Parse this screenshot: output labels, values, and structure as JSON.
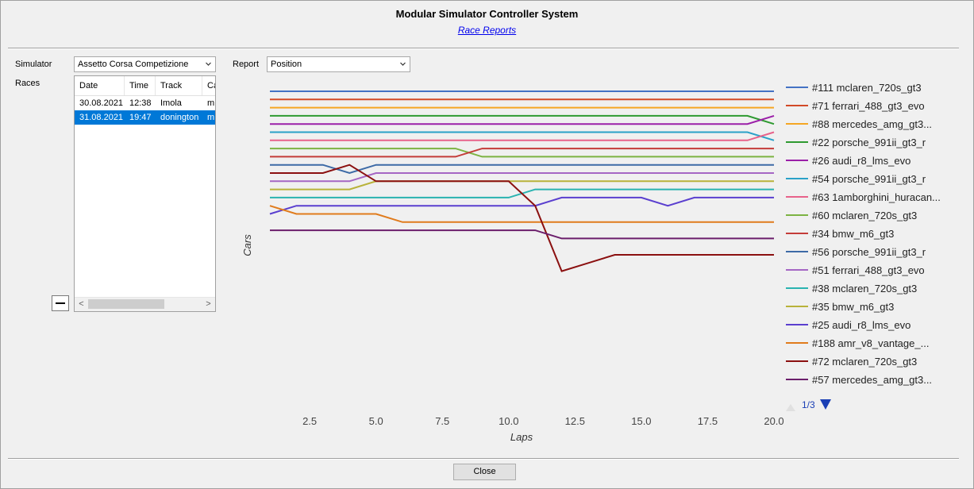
{
  "window": {
    "title": "Modular Simulator Controller System",
    "subtitle_link": "Race Reports"
  },
  "simulator": {
    "label": "Simulator",
    "value": "Assetto Corsa Competizione"
  },
  "report": {
    "label": "Report",
    "value": "Position"
  },
  "races": {
    "label": "Races",
    "columns": [
      "Date",
      "Time",
      "Track",
      "Ca"
    ],
    "rows": [
      {
        "date": "30.08.2021",
        "time": "12:38",
        "track": "Imola",
        "car": "m",
        "selected": false
      },
      {
        "date": "31.08.2021",
        "time": "19:47",
        "track": "donington",
        "car": "m",
        "selected": true
      }
    ]
  },
  "close_label": "Close",
  "chart_data": {
    "type": "line",
    "xlabel": "Laps",
    "ylabel": "Cars",
    "xlim": [
      1,
      20
    ],
    "xticks": [
      "2.5",
      "5.0",
      "7.5",
      "10.0",
      "12.5",
      "15.0",
      "17.5",
      "20.0"
    ],
    "page_indicator": "1/3",
    "series": [
      {
        "name": "#111 mclaren_720s_gt3",
        "color": "#4472c4",
        "positions": [
          1,
          1,
          1,
          1,
          1,
          1,
          1,
          1,
          1,
          1,
          1,
          1,
          1,
          1,
          1,
          1,
          1,
          1,
          1,
          1
        ]
      },
      {
        "name": "#71 ferrari_488_gt3_evo",
        "color": "#d24a27",
        "positions": [
          2,
          2,
          2,
          2,
          2,
          2,
          2,
          2,
          2,
          2,
          2,
          2,
          2,
          2,
          2,
          2,
          2,
          2,
          2,
          2
        ]
      },
      {
        "name": "#88 mercedes_amg_gt3...",
        "color": "#f5a623",
        "positions": [
          3,
          3,
          3,
          3,
          3,
          3,
          3,
          3,
          3,
          3,
          3,
          3,
          3,
          3,
          3,
          3,
          3,
          3,
          3,
          3
        ]
      },
      {
        "name": "#22 porsche_991ii_gt3_r",
        "color": "#2e9a30",
        "positions": [
          4,
          4,
          4,
          4,
          4,
          4,
          4,
          4,
          4,
          4,
          4,
          4,
          4,
          4,
          4,
          4,
          4,
          4,
          4,
          5
        ]
      },
      {
        "name": "#26 audi_r8_lms_evo",
        "color": "#9b1fa8",
        "positions": [
          5,
          5,
          5,
          5,
          5,
          5,
          5,
          5,
          5,
          5,
          5,
          5,
          5,
          5,
          5,
          5,
          5,
          5,
          5,
          4
        ]
      },
      {
        "name": "#54 porsche_991ii_gt3_r",
        "color": "#2aa1c8",
        "positions": [
          6,
          6,
          6,
          6,
          6,
          6,
          6,
          6,
          6,
          6,
          6,
          6,
          6,
          6,
          6,
          6,
          6,
          6,
          6,
          7
        ]
      },
      {
        "name": "#63 1amborghini_huracan...",
        "color": "#e8628a",
        "positions": [
          7,
          7,
          7,
          7,
          7,
          7,
          7,
          7,
          7,
          7,
          7,
          7,
          7,
          7,
          7,
          7,
          7,
          7,
          7,
          6
        ]
      },
      {
        "name": "#60 mclaren_720s_gt3",
        "color": "#7cb342",
        "positions": [
          8,
          8,
          8,
          8,
          8,
          8,
          8,
          8,
          9,
          9,
          9,
          9,
          9,
          9,
          9,
          9,
          9,
          9,
          9,
          9
        ]
      },
      {
        "name": "#34 bmw_m6_gt3",
        "color": "#c43c39",
        "positions": [
          9,
          9,
          9,
          9,
          9,
          9,
          9,
          9,
          8,
          8,
          8,
          8,
          8,
          8,
          8,
          8,
          8,
          8,
          8,
          8
        ]
      },
      {
        "name": "#56 porsche_991ii_gt3_r",
        "color": "#3d6aa6",
        "positions": [
          10,
          10,
          10,
          11,
          10,
          10,
          10,
          10,
          10,
          10,
          10,
          10,
          10,
          10,
          10,
          10,
          10,
          10,
          10,
          10
        ]
      },
      {
        "name": "#51 ferrari_488_gt3_evo",
        "color": "#a566c4",
        "positions": [
          12,
          12,
          12,
          12,
          11,
          11,
          11,
          11,
          11,
          11,
          11,
          11,
          11,
          11,
          11,
          11,
          11,
          11,
          11,
          11
        ]
      },
      {
        "name": "#38 mclaren_720s_gt3",
        "color": "#2ab3b0",
        "positions": [
          14,
          14,
          14,
          14,
          14,
          14,
          14,
          14,
          14,
          14,
          13,
          13,
          13,
          13,
          13,
          13,
          13,
          13,
          13,
          13
        ]
      },
      {
        "name": "#35 bmw_m6_gt3",
        "color": "#b8b23a",
        "positions": [
          13,
          13,
          13,
          13,
          12,
          12,
          12,
          12,
          12,
          12,
          12,
          12,
          12,
          12,
          12,
          12,
          12,
          12,
          12,
          12
        ]
      },
      {
        "name": "#25 audi_r8_lms_evo",
        "color": "#5a3fcf",
        "positions": [
          16,
          15,
          15,
          15,
          15,
          15,
          15,
          15,
          15,
          15,
          15,
          14,
          14,
          14,
          14,
          15,
          14,
          14,
          14,
          14
        ]
      },
      {
        "name": "#188 amr_v8_vantage_...",
        "color": "#e07b1c",
        "positions": [
          15,
          16,
          16,
          16,
          16,
          17,
          17,
          17,
          17,
          17,
          17,
          17,
          17,
          17,
          17,
          17,
          17,
          17,
          17,
          17
        ]
      },
      {
        "name": "#72 mclaren_720s_gt3",
        "color": "#8b1010",
        "positions": [
          11,
          11,
          11,
          10,
          12,
          12,
          12,
          12,
          12,
          12,
          15,
          23,
          22,
          21,
          21,
          21,
          21,
          21,
          21,
          21
        ]
      },
      {
        "name": "#57 mercedes_amg_gt3...",
        "color": "#6b1e6b",
        "positions": [
          18,
          18,
          18,
          18,
          18,
          18,
          18,
          18,
          18,
          18,
          18,
          19,
          19,
          19,
          19,
          19,
          19,
          19,
          19,
          19
        ]
      }
    ]
  }
}
